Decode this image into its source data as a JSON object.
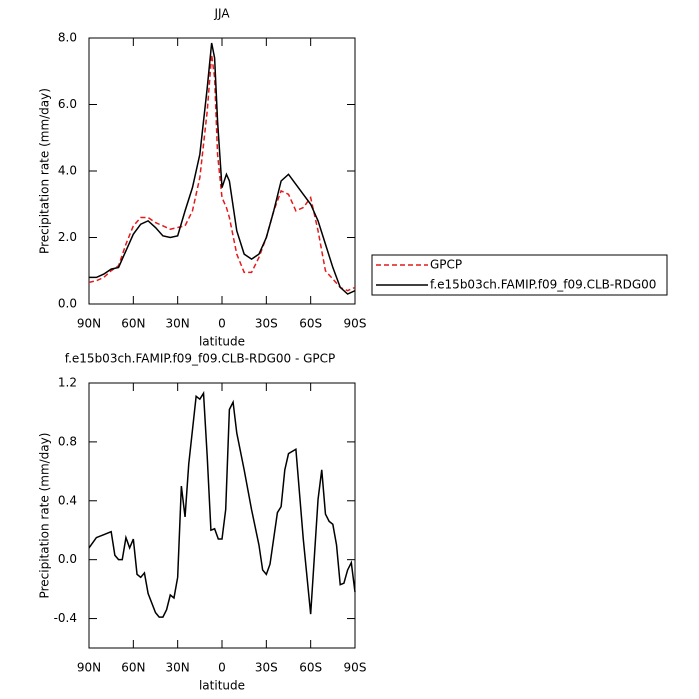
{
  "chart_data": [
    {
      "type": "line",
      "title": "JJA",
      "xlabel": "latitude",
      "ylabel": "Precipitation rate (mm/day)",
      "xlim": [
        90,
        -90
      ],
      "xticks": [
        {
          "value": 90,
          "label": "90N"
        },
        {
          "value": 60,
          "label": "60N"
        },
        {
          "value": 30,
          "label": "30N"
        },
        0,
        {
          "value": -30,
          "label": "30S"
        },
        {
          "value": -60,
          "label": "60S"
        },
        {
          "value": -90,
          "label": "90S"
        }
      ],
      "ylim": [
        0,
        8
      ],
      "yticks": [
        {
          "value": 0,
          "label": "0.0"
        },
        {
          "value": 2,
          "label": "2.0"
        },
        {
          "value": 4,
          "label": "4.0"
        },
        {
          "value": 6,
          "label": "6.0"
        },
        {
          "value": 8,
          "label": "8.0"
        }
      ],
      "legend": "right",
      "x": [
        90,
        85,
        80,
        75,
        70,
        65,
        60,
        55,
        50,
        45,
        40,
        35,
        30,
        25,
        20,
        15,
        10,
        7,
        5,
        3,
        0,
        -3,
        -5,
        -10,
        -15,
        -20,
        -25,
        -30,
        -35,
        -40,
        -45,
        -50,
        -55,
        -60,
        -65,
        -70,
        -75,
        -80,
        -85,
        -90
      ],
      "series": [
        {
          "name": "GPCP",
          "color": "#e41a1c",
          "dash": true,
          "values": [
            0.65,
            0.7,
            0.8,
            1.0,
            1.15,
            1.8,
            2.35,
            2.6,
            2.6,
            2.45,
            2.35,
            2.25,
            2.3,
            2.35,
            2.8,
            3.8,
            5.8,
            7.5,
            6.8,
            4.5,
            3.2,
            2.9,
            2.6,
            1.5,
            0.95,
            0.95,
            1.4,
            2.0,
            2.8,
            3.4,
            3.3,
            2.8,
            2.9,
            3.2,
            2.2,
            1.0,
            0.75,
            0.5,
            0.4,
            0.5
          ]
        },
        {
          "name": "f.e15b03ch.FAMIP.f09_f09.CLB-RDG00",
          "color": "#000000",
          "dash": false,
          "values": [
            0.8,
            0.8,
            0.9,
            1.05,
            1.1,
            1.6,
            2.1,
            2.4,
            2.5,
            2.3,
            2.05,
            2.0,
            2.05,
            2.8,
            3.5,
            4.5,
            6.5,
            7.85,
            7.4,
            5.5,
            3.5,
            3.9,
            3.7,
            2.2,
            1.5,
            1.35,
            1.5,
            2.0,
            2.8,
            3.7,
            3.9,
            3.6,
            3.3,
            3.0,
            2.5,
            1.8,
            1.1,
            0.5,
            0.3,
            0.4
          ]
        }
      ]
    },
    {
      "type": "line",
      "title": "f.e15b03ch.FAMIP.f09_f09.CLB-RDG00 - GPCP",
      "xlabel": "latitude",
      "ylabel": "Precipitation rate (mm/day)",
      "xlim": [
        90,
        -90
      ],
      "xticks": [
        {
          "value": 90,
          "label": "90N"
        },
        {
          "value": 60,
          "label": "60N"
        },
        {
          "value": 30,
          "label": "30N"
        },
        0,
        {
          "value": -30,
          "label": "30S"
        },
        {
          "value": -60,
          "label": "60S"
        },
        {
          "value": -90,
          "label": "90S"
        }
      ],
      "ylim": [
        -0.6,
        1.2
      ],
      "yticks": [
        -0.4,
        {
          "value": 0,
          "label": "0.0"
        },
        0.4,
        0.8,
        1.2
      ],
      "x": [
        90,
        85,
        80,
        75,
        72.5,
        70,
        67.5,
        65,
        62.5,
        60,
        57.5,
        55,
        52.5,
        50,
        45,
        42.5,
        40,
        37.5,
        35,
        32.5,
        30,
        27.5,
        25,
        22.5,
        17.5,
        15,
        12.5,
        10,
        7.5,
        5,
        2.5,
        0,
        -2.5,
        -5,
        -7.5,
        -10,
        -15,
        -20,
        -25,
        -27.5,
        -30,
        -32.5,
        -37.5,
        -40,
        -42.5,
        -45,
        -50,
        -55,
        -60,
        -65,
        -67.5,
        -70,
        -72.5,
        -75,
        -77.5,
        -80,
        -82.5,
        -85,
        -87.5,
        -90
      ],
      "color": "#000000",
      "values": [
        0.08,
        0.15,
        0.17,
        0.19,
        0.03,
        0,
        0,
        0.15,
        0.08,
        0.14,
        -0.1,
        -0.12,
        -0.09,
        -0.23,
        -0.36,
        -0.39,
        -0.39,
        -0.34,
        -0.24,
        -0.26,
        -0.12,
        0.5,
        0.29,
        0.65,
        1.11,
        1.09,
        1.13,
        0.7,
        0.2,
        0.21,
        0.14,
        0.14,
        0.34,
        1.02,
        1.07,
        0.86,
        0.61,
        0.34,
        0.1,
        -0.07,
        -0.1,
        -0.03,
        0.32,
        0.36,
        0.61,
        0.72,
        0.75,
        0.14,
        -0.37,
        0.41,
        0.61,
        0.31,
        0.26,
        0.24,
        0.1,
        -0.17,
        -0.16,
        -0.07,
        -0.02,
        -0.22
      ]
    }
  ]
}
